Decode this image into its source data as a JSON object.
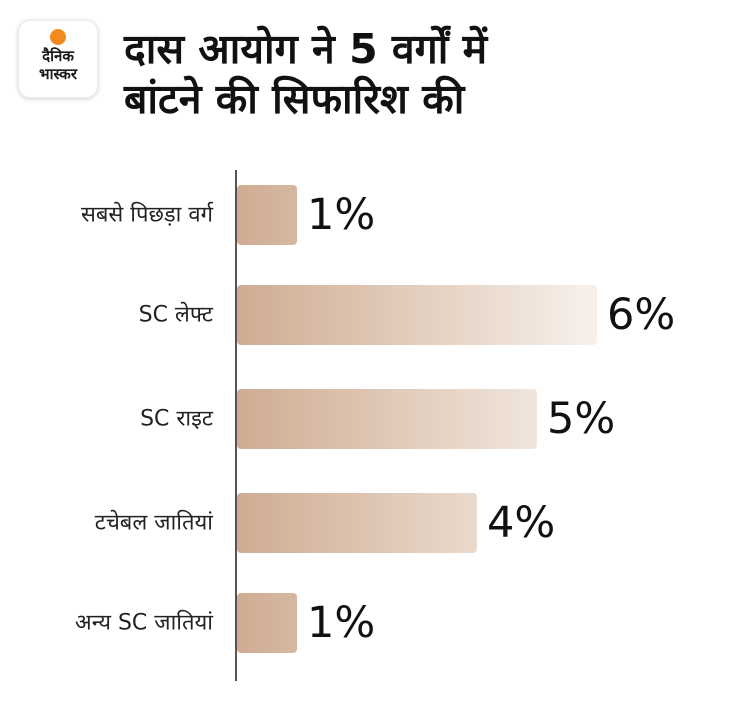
{
  "logo": {
    "line1": "दैनिक",
    "line2": "भास्कर",
    "accent_color": "#f38a1e"
  },
  "title_lines": [
    "दास आयोग ने 5 वर्गों में",
    "बांटने की सिफारिश की"
  ],
  "bar_colors": {
    "start": "#cfac92",
    "end": "#f7f1ec"
  },
  "chart_data": {
    "type": "bar",
    "orientation": "horizontal",
    "title": "दास आयोग ने 5 वर्गों में बांटने की सिफारिश की",
    "categories": [
      "सबसे पिछड़ा वर्ग",
      "SC लेफ्ट",
      "SC राइट",
      "टचेबल जातियां",
      "अन्य SC जातियां"
    ],
    "values": [
      1,
      6,
      5,
      4,
      1
    ],
    "value_labels": [
      "1%",
      "6%",
      "5%",
      "4%",
      "1%"
    ],
    "unit": "%",
    "xlim": [
      0,
      6
    ],
    "grid": false,
    "legend": "none"
  }
}
